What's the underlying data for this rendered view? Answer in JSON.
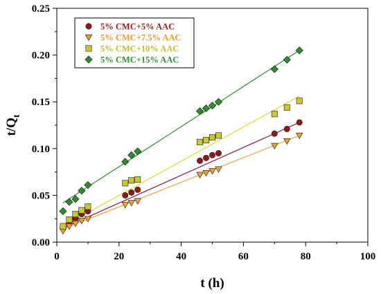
{
  "chart_data": {
    "type": "scatter",
    "xlabel": "t (h)",
    "ylabel_main": "t/Q",
    "ylabel_sub": "t",
    "xlim": [
      0,
      100
    ],
    "ylim": [
      0,
      0.25
    ],
    "x_ticks": [
      "0",
      "20",
      "40",
      "60",
      "80",
      "100"
    ],
    "y_ticks": [
      "0.00",
      "0.05",
      "0.10",
      "0.15",
      "0.20",
      "0.25"
    ],
    "legend_position": "top-left",
    "series": [
      {
        "name": "5% CMC+5% AAC",
        "color": "#8b1a1a",
        "text_color": "#9b1c1c",
        "marker": "circle",
        "x": [
          2,
          4,
          6,
          8,
          10,
          22,
          24,
          26,
          46,
          48,
          50,
          52,
          70,
          74,
          78
        ],
        "y": [
          0.015,
          0.02,
          0.025,
          0.03,
          0.033,
          0.05,
          0.053,
          0.056,
          0.087,
          0.09,
          0.093,
          0.095,
          0.116,
          0.121,
          0.128
        ],
        "fit": [
          [
            2,
            0.015
          ],
          [
            78,
            0.128
          ]
        ],
        "fit_color": "#8b1a3a"
      },
      {
        "name": "5% CMC+7.5% AAC",
        "color": "#e8a23a",
        "text_color": "#e39a2e",
        "marker": "triangle-down",
        "x": [
          2,
          4,
          6,
          8,
          10,
          22,
          24,
          26,
          46,
          48,
          50,
          52,
          70,
          74,
          78
        ],
        "y": [
          0.012,
          0.017,
          0.02,
          0.023,
          0.025,
          0.04,
          0.042,
          0.044,
          0.072,
          0.074,
          0.076,
          0.078,
          0.103,
          0.108,
          0.114
        ],
        "fit": [
          [
            2,
            0.014
          ],
          [
            78,
            0.114
          ]
        ],
        "fit_color": "#e8a23a"
      },
      {
        "name": "5% CMC+10% AAC",
        "color": "#c8c832",
        "text_color": "#bdbd2a",
        "marker": "square",
        "x": [
          2,
          4,
          6,
          8,
          10,
          22,
          24,
          26,
          46,
          48,
          50,
          52,
          70,
          74,
          78
        ],
        "y": [
          0.017,
          0.024,
          0.03,
          0.034,
          0.038,
          0.063,
          0.066,
          0.067,
          0.107,
          0.109,
          0.112,
          0.114,
          0.137,
          0.144,
          0.151
        ],
        "fit": [
          [
            2,
            0.017
          ],
          [
            78,
            0.156
          ]
        ],
        "fit_color": "#d6d640"
      },
      {
        "name": "5% CMC+15% AAC",
        "color": "#2e8b2e",
        "text_color": "#2f8f2f",
        "marker": "diamond",
        "x": [
          2,
          4,
          6,
          8,
          10,
          22,
          24,
          26,
          46,
          48,
          50,
          52,
          70,
          74,
          78
        ],
        "y": [
          0.033,
          0.043,
          0.046,
          0.055,
          0.061,
          0.086,
          0.093,
          0.097,
          0.14,
          0.143,
          0.146,
          0.15,
          0.185,
          0.195,
          0.205
        ],
        "fit": [
          [
            2,
            0.042
          ],
          [
            78,
            0.205
          ]
        ],
        "fit_color": "#2e8b2e"
      }
    ]
  }
}
